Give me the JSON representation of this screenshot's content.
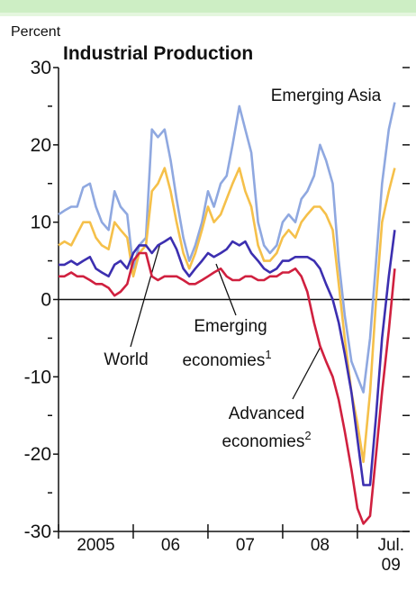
{
  "chart_data": {
    "type": "line",
    "title": "Industrial Production",
    "ylabel": "Percent",
    "x": [
      2005,
      2005.08,
      2005.17,
      2005.25,
      2005.33,
      2005.42,
      2005.5,
      2005.58,
      2005.67,
      2005.75,
      2005.83,
      2005.92,
      2006,
      2006.08,
      2006.17,
      2006.25,
      2006.33,
      2006.42,
      2006.5,
      2006.58,
      2006.67,
      2006.75,
      2006.83,
      2006.92,
      2007,
      2007.08,
      2007.17,
      2007.25,
      2007.33,
      2007.42,
      2007.5,
      2007.58,
      2007.67,
      2007.75,
      2007.83,
      2007.92,
      2008,
      2008.08,
      2008.17,
      2008.25,
      2008.33,
      2008.42,
      2008.5,
      2008.58,
      2008.67,
      2008.75,
      2008.83,
      2008.92,
      2009,
      2009.08,
      2009.17,
      2009.25,
      2009.33,
      2009.42,
      2009.5
    ],
    "series": [
      {
        "name": "Emerging Asia",
        "color": "#8fa8e0",
        "values": [
          11,
          11.5,
          12,
          12,
          14.5,
          15,
          12,
          10,
          9,
          14,
          12,
          11,
          4,
          7,
          8,
          22,
          21,
          22,
          18,
          13,
          8,
          5,
          7,
          10,
          14,
          12,
          15,
          16,
          20,
          25,
          22,
          19,
          10,
          7,
          6,
          7,
          10,
          11,
          10,
          13,
          14,
          16,
          20,
          18,
          15,
          5,
          -2,
          -8,
          -10,
          -12,
          -5,
          5,
          15,
          22,
          25.5
        ]
      },
      {
        "name": "Emerging economies",
        "color": "#f5c04a",
        "values": [
          7,
          7.5,
          7,
          8.5,
          10,
          10,
          8,
          7,
          6.5,
          10,
          9,
          8,
          3,
          6,
          7,
          14,
          15,
          17,
          14,
          10,
          6,
          4,
          6,
          9,
          12,
          10,
          11,
          13,
          15,
          17,
          14,
          12,
          7,
          5,
          5,
          6,
          8,
          9,
          8,
          10,
          11,
          12,
          12,
          11,
          9,
          2,
          -5,
          -12,
          -16,
          -21,
          -12,
          0,
          10,
          14,
          17
        ]
      },
      {
        "name": "World",
        "color": "#3c2fb0",
        "values": [
          4.5,
          4.5,
          5,
          4.5,
          5,
          5.5,
          4,
          3.5,
          3,
          4.5,
          5,
          4,
          6,
          7,
          7,
          6,
          7,
          7.5,
          8,
          6.5,
          4,
          3,
          4,
          5,
          6,
          5.5,
          6,
          6.5,
          7.5,
          7,
          7.5,
          6,
          5,
          4,
          3.5,
          4,
          5,
          5,
          5.5,
          5.5,
          5.5,
          5,
          4,
          2,
          0,
          -3,
          -7,
          -12,
          -18,
          -24,
          -24,
          -15,
          -5,
          3,
          9
        ]
      },
      {
        "name": "Advanced economies",
        "color": "#d0203f",
        "values": [
          3,
          3,
          3.5,
          3,
          3,
          2.5,
          2,
          2,
          1.5,
          0.5,
          1,
          2,
          5,
          6,
          6,
          3,
          2.5,
          3,
          3,
          3,
          2.5,
          2,
          2,
          2.5,
          3,
          3.5,
          4,
          3,
          2.5,
          2.5,
          3,
          3,
          2.5,
          2.5,
          3,
          3,
          3.5,
          3.5,
          4,
          3,
          1,
          -3,
          -6,
          -8,
          -10,
          -13,
          -17,
          -22,
          -27,
          -29,
          -28,
          -20,
          -12,
          -4,
          4
        ]
      }
    ],
    "annotations": [
      {
        "text": "Emerging Asia"
      },
      {
        "text": "World"
      },
      {
        "lines": [
          "Emerging",
          "economies"
        ],
        "note": "1"
      },
      {
        "lines": [
          "Advanced",
          "economies"
        ],
        "note": "2"
      }
    ],
    "xlim": [
      2005,
      2009.7
    ],
    "xticks": [
      2005,
      2006,
      2007,
      2008,
      2009
    ],
    "xtick_labels": [
      {
        "value": 2005.5,
        "label": "2005"
      },
      {
        "value": 2006.5,
        "label": "06"
      },
      {
        "value": 2007.5,
        "label": "07"
      },
      {
        "value": 2008.5,
        "label": "08"
      },
      {
        "value": 2009.45,
        "label": "Jul. 09"
      }
    ],
    "ylim": [
      -30,
      30
    ],
    "yticks": [
      -30,
      -20,
      -10,
      0,
      10,
      20,
      30
    ],
    "yminor_ticks": [
      -25,
      -15,
      -5,
      5,
      15,
      25
    ]
  }
}
